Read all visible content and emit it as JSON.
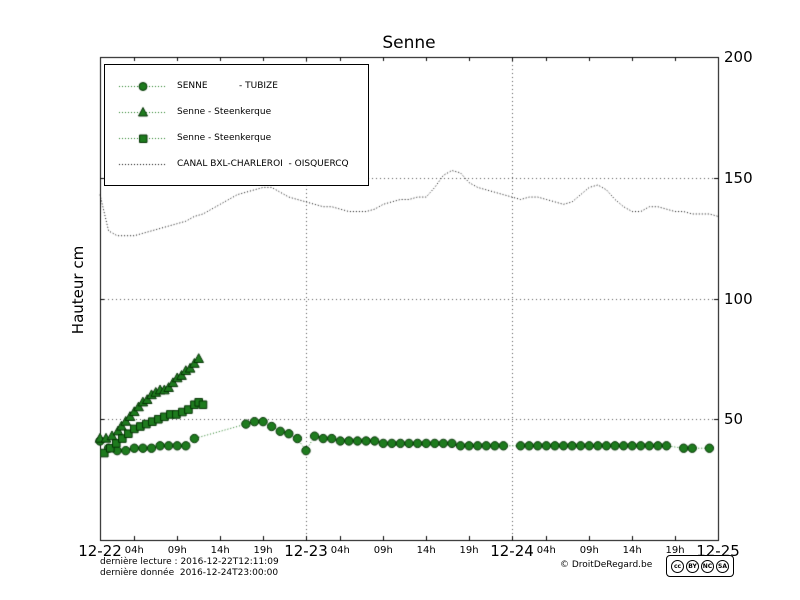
{
  "chart_data": {
    "type": "line",
    "title": "Senne",
    "ylabel": "Hauteur cm",
    "ylim": [
      0,
      200
    ],
    "xlim_hours": [
      0,
      72
    ],
    "grid": {
      "vertical_t": [
        24,
        48
      ],
      "horizontal_v": [
        50,
        100,
        150
      ]
    },
    "y_ticks": [
      {
        "v": 50,
        "label": "50"
      },
      {
        "v": 100,
        "label": "100"
      },
      {
        "v": 150,
        "label": "150"
      },
      {
        "v": 200,
        "label": "200"
      }
    ],
    "day_ticks": [
      {
        "t": 0,
        "label": "12-22"
      },
      {
        "t": 24,
        "label": "12-23"
      },
      {
        "t": 48,
        "label": "12-24"
      },
      {
        "t": 72,
        "label": "12-25"
      }
    ],
    "hour_ticks": [
      {
        "t": 4,
        "label": "04h"
      },
      {
        "t": 9,
        "label": "09h"
      },
      {
        "t": 14,
        "label": "14h"
      },
      {
        "t": 19,
        "label": "19h"
      },
      {
        "t": 28,
        "label": "04h"
      },
      {
        "t": 33,
        "label": "09h"
      },
      {
        "t": 38,
        "label": "14h"
      },
      {
        "t": 43,
        "label": "19h"
      },
      {
        "t": 52,
        "label": "04h"
      },
      {
        "t": 57,
        "label": "09h"
      },
      {
        "t": 62,
        "label": "14h"
      },
      {
        "t": 67,
        "label": "19h"
      }
    ],
    "colors": {
      "green": "#1e7b1e",
      "green_edge": "#043304",
      "black": "#000000"
    },
    "series": [
      {
        "label": "SENNE - TUBIZE",
        "legend_label": "SENNE           - TUBIZE",
        "marker": "circle",
        "color": "green",
        "linestyle": "dotted",
        "points": [
          [
            0,
            41
          ],
          [
            1,
            38
          ],
          [
            2,
            37
          ],
          [
            3,
            37
          ],
          [
            4,
            38
          ],
          [
            5,
            38
          ],
          [
            6,
            38
          ],
          [
            7,
            39
          ],
          [
            8,
            39
          ],
          [
            9,
            39
          ],
          [
            10,
            39
          ],
          [
            11,
            42
          ],
          [
            17,
            48
          ],
          [
            18,
            49
          ],
          [
            19,
            49
          ],
          [
            20,
            47
          ],
          [
            21,
            45
          ],
          [
            22,
            44
          ],
          [
            23,
            42
          ],
          [
            24,
            37
          ],
          [
            25,
            43
          ],
          [
            26,
            42
          ],
          [
            27,
            42
          ],
          [
            28,
            41
          ],
          [
            29,
            41
          ],
          [
            30,
            41
          ],
          [
            31,
            41
          ],
          [
            32,
            41
          ],
          [
            33,
            40
          ],
          [
            34,
            40
          ],
          [
            35,
            40
          ],
          [
            36,
            40
          ],
          [
            37,
            40
          ],
          [
            38,
            40
          ],
          [
            39,
            40
          ],
          [
            40,
            40
          ],
          [
            41,
            40
          ],
          [
            42,
            39
          ],
          [
            43,
            39
          ],
          [
            44,
            39
          ],
          [
            45,
            39
          ],
          [
            46,
            39
          ],
          [
            47,
            39
          ],
          [
            49,
            39
          ],
          [
            50,
            39
          ],
          [
            51,
            39
          ],
          [
            52,
            39
          ],
          [
            53,
            39
          ],
          [
            54,
            39
          ],
          [
            55,
            39
          ],
          [
            56,
            39
          ],
          [
            57,
            39
          ],
          [
            58,
            39
          ],
          [
            59,
            39
          ],
          [
            60,
            39
          ],
          [
            61,
            39
          ],
          [
            62,
            39
          ],
          [
            63,
            39
          ],
          [
            64,
            39
          ],
          [
            65,
            39
          ],
          [
            66,
            39
          ],
          [
            68,
            38
          ],
          [
            69,
            38
          ],
          [
            71,
            38
          ]
        ]
      },
      {
        "label": "Senne - Steenkerque",
        "legend_label": "Senne - Steenkerque",
        "marker": "triangle",
        "color": "green",
        "linestyle": "dotted",
        "points": [
          [
            0,
            42
          ],
          [
            0.7,
            42
          ],
          [
            1.4,
            43
          ],
          [
            2.1,
            45
          ],
          [
            2.5,
            47
          ],
          [
            3,
            49
          ],
          [
            3.5,
            51
          ],
          [
            4,
            53
          ],
          [
            4.5,
            55
          ],
          [
            5,
            57
          ],
          [
            5.5,
            58
          ],
          [
            6,
            60
          ],
          [
            6.5,
            61
          ],
          [
            7,
            62
          ],
          [
            7.5,
            62
          ],
          [
            8,
            63
          ],
          [
            8.5,
            65
          ],
          [
            9,
            67
          ],
          [
            9.5,
            68
          ],
          [
            10,
            70
          ],
          [
            10.5,
            71
          ],
          [
            11,
            73
          ],
          [
            11.5,
            75
          ]
        ]
      },
      {
        "label": "Senne - Steenkerque",
        "legend_label": "Senne - Steenkerque",
        "marker": "square",
        "color": "green",
        "linestyle": "dotted",
        "points": [
          [
            0.5,
            36
          ],
          [
            1.2,
            38
          ],
          [
            1.9,
            40
          ],
          [
            2.6,
            42
          ],
          [
            3.3,
            44
          ],
          [
            4,
            46
          ],
          [
            4.7,
            47
          ],
          [
            5.4,
            48
          ],
          [
            6.1,
            49
          ],
          [
            6.8,
            50
          ],
          [
            7.5,
            51
          ],
          [
            8.2,
            52
          ],
          [
            8.9,
            52
          ],
          [
            9.6,
            53
          ],
          [
            10.3,
            54
          ],
          [
            11,
            56
          ],
          [
            11.5,
            57
          ],
          [
            12,
            56
          ]
        ]
      },
      {
        "label": "CANAL BXL-CHARLEROI - OISQUERCQ",
        "legend_label": "CANAL BXL-CHARLEROI  - OISQUERCQ",
        "marker": "none",
        "color": "black",
        "linestyle": "dotted",
        "x_start": 0,
        "x_step": 1,
        "values": [
          143,
          128,
          126,
          126,
          126,
          127,
          128,
          129,
          130,
          131,
          132,
          134,
          135,
          137,
          139,
          141,
          143,
          144,
          145,
          146,
          146,
          144,
          142,
          141,
          140,
          139,
          138,
          138,
          137,
          136,
          136,
          136,
          137,
          139,
          140,
          141,
          141,
          142,
          142,
          146,
          151,
          153,
          152,
          148,
          146,
          145,
          144,
          143,
          142,
          141,
          142,
          142,
          141,
          140,
          139,
          140,
          143,
          146,
          147,
          145,
          141,
          138,
          136,
          136,
          138,
          138,
          137,
          136,
          136,
          135,
          135,
          135,
          134
        ]
      }
    ]
  },
  "footer": {
    "derniere_lecture": "dernière lecture : 2016-12-22T12:11:09",
    "derniere_donnee": "dernière donnée  2016-12-24T23:00:00",
    "copyright": "© DroitDeRegard.be",
    "license_badge": [
      "cc",
      "BY",
      "NC",
      "SA"
    ]
  }
}
